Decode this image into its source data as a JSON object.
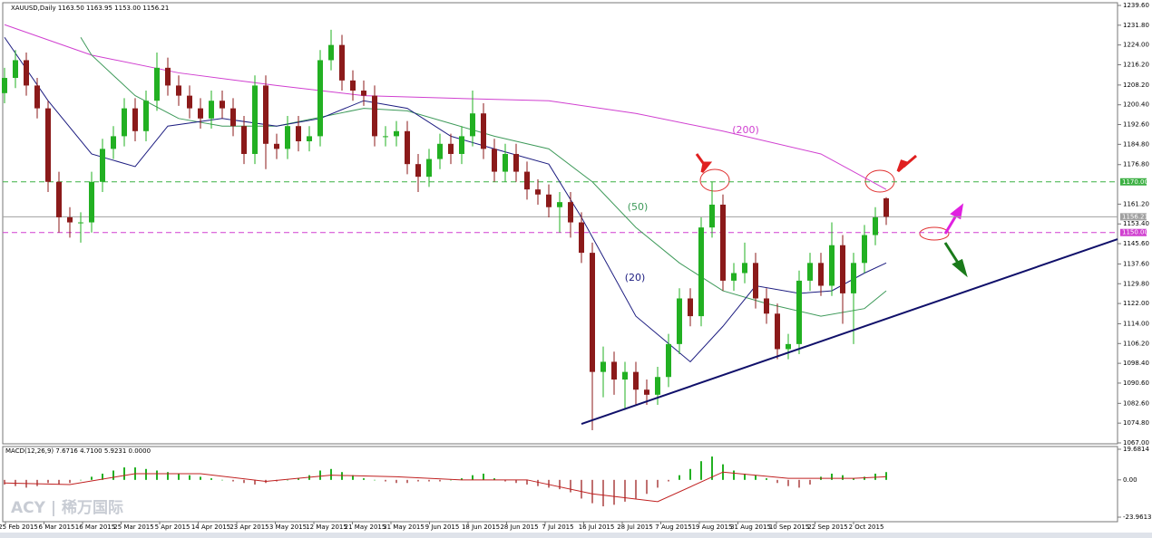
{
  "chart_data": {
    "type": "candlestick",
    "title": "XAUUSD,Daily 1163.50 1163.95 1153.00 1156.21",
    "ylim": [
      1067.0,
      1239.6
    ],
    "yticks": [
      {
        "value": 1239.6,
        "label": "1239.60"
      },
      {
        "value": 1231.8,
        "label": "1231.80"
      },
      {
        "value": 1224.0,
        "label": "1224.00"
      },
      {
        "value": 1216.2,
        "label": "1216.20"
      },
      {
        "value": 1208.2,
        "label": "1208.20"
      },
      {
        "value": 1200.4,
        "label": "1200.40"
      },
      {
        "value": 1192.6,
        "label": "1192.60"
      },
      {
        "value": 1184.8,
        "label": "1184.80"
      },
      {
        "value": 1176.8,
        "label": "1176.80"
      },
      {
        "value": 1161.2,
        "label": "1161.20"
      },
      {
        "value": 1153.4,
        "label": "1153.40"
      },
      {
        "value": 1145.6,
        "label": "1145.60"
      },
      {
        "value": 1137.6,
        "label": "1137.60"
      },
      {
        "value": 1129.8,
        "label": "1129.80"
      },
      {
        "value": 1122.0,
        "label": "1122.00"
      },
      {
        "value": 1114.0,
        "label": "1114.00"
      },
      {
        "value": 1106.2,
        "label": "1106.20"
      },
      {
        "value": 1098.4,
        "label": "1098.40"
      },
      {
        "value": 1090.6,
        "label": "1090.60"
      },
      {
        "value": 1082.6,
        "label": "1082.60"
      },
      {
        "value": 1074.8,
        "label": "1074.80"
      },
      {
        "value": 1067.0,
        "label": "1067.00"
      }
    ],
    "x_labels": [
      "25 Feb 2015",
      "6 Mar 2015",
      "16 Mar 2015",
      "25 Mar 2015",
      "5 Apr 2015",
      "14 Apr 2015",
      "23 Apr 2015",
      "3 May 2015",
      "12 May 2015",
      "21 May 2015",
      "31 May 2015",
      "9 Jun 2015",
      "18 Jun 2015",
      "28 Jun 2015",
      "7 Jul 2015",
      "16 Jul 2015",
      "28 Jul 2015",
      "7 Aug 2015",
      "19 Aug 2015",
      "31 Aug 2015",
      "10 Sep 2015",
      "22 Sep 2015",
      "2 Oct 2015"
    ],
    "up_color": "#22b022",
    "down_color": "#8b1a1a",
    "ohlc": [
      [
        1205,
        1215,
        1201,
        1211
      ],
      [
        1211,
        1222,
        1207,
        1218
      ],
      [
        1218,
        1221,
        1204,
        1208
      ],
      [
        1208,
        1211,
        1195,
        1199
      ],
      [
        1199,
        1202,
        1166,
        1170
      ],
      [
        1170,
        1174,
        1150,
        1156
      ],
      [
        1156,
        1160,
        1148,
        1154
      ],
      [
        1154,
        1158,
        1146,
        1154
      ],
      [
        1154,
        1174,
        1150,
        1170
      ],
      [
        1170,
        1187,
        1166,
        1183
      ],
      [
        1183,
        1192,
        1179,
        1188
      ],
      [
        1188,
        1203,
        1184,
        1199
      ],
      [
        1199,
        1203,
        1186,
        1190
      ],
      [
        1190,
        1206,
        1186,
        1202
      ],
      [
        1202,
        1221,
        1198,
        1215
      ],
      [
        1215,
        1219,
        1204,
        1208
      ],
      [
        1208,
        1212,
        1200,
        1204
      ],
      [
        1204,
        1208,
        1195,
        1199
      ],
      [
        1199,
        1203,
        1191,
        1195
      ],
      [
        1195,
        1206,
        1191,
        1202
      ],
      [
        1202,
        1206,
        1195,
        1199
      ],
      [
        1199,
        1203,
        1188,
        1192
      ],
      [
        1192,
        1196,
        1177,
        1181
      ],
      [
        1181,
        1212,
        1177,
        1208
      ],
      [
        1208,
        1212,
        1175,
        1185
      ],
      [
        1185,
        1189,
        1179,
        1183
      ],
      [
        1183,
        1196,
        1179,
        1192
      ],
      [
        1192,
        1196,
        1182,
        1186
      ],
      [
        1186,
        1192,
        1182,
        1188
      ],
      [
        1188,
        1222,
        1184,
        1218
      ],
      [
        1218,
        1230,
        1214,
        1224
      ],
      [
        1224,
        1228,
        1206,
        1210
      ],
      [
        1210,
        1214,
        1202,
        1206
      ],
      [
        1206,
        1210,
        1200,
        1204
      ],
      [
        1204,
        1208,
        1184,
        1188
      ],
      [
        1188,
        1192,
        1184,
        1188
      ],
      [
        1188,
        1194,
        1184,
        1190
      ],
      [
        1190,
        1194,
        1173,
        1177
      ],
      [
        1177,
        1181,
        1166,
        1172
      ],
      [
        1172,
        1183,
        1168,
        1179
      ],
      [
        1179,
        1189,
        1175,
        1185
      ],
      [
        1185,
        1189,
        1177,
        1181
      ],
      [
        1181,
        1192,
        1177,
        1188
      ],
      [
        1188,
        1206,
        1184,
        1197
      ],
      [
        1197,
        1201,
        1179,
        1183
      ],
      [
        1183,
        1187,
        1170,
        1174
      ],
      [
        1174,
        1185,
        1170,
        1181
      ],
      [
        1181,
        1185,
        1170,
        1174
      ],
      [
        1174,
        1178,
        1163,
        1167
      ],
      [
        1167,
        1171,
        1161,
        1165
      ],
      [
        1165,
        1169,
        1156,
        1160
      ],
      [
        1160,
        1166,
        1150,
        1162
      ],
      [
        1162,
        1166,
        1148,
        1154
      ],
      [
        1154,
        1158,
        1138,
        1142
      ],
      [
        1142,
        1146,
        1072,
        1095
      ],
      [
        1095,
        1105,
        1085,
        1099
      ],
      [
        1099,
        1103,
        1086,
        1092
      ],
      [
        1092,
        1099,
        1080,
        1095
      ],
      [
        1095,
        1099,
        1082,
        1088
      ],
      [
        1088,
        1092,
        1082,
        1086
      ],
      [
        1086,
        1097,
        1082,
        1093
      ],
      [
        1093,
        1110,
        1089,
        1106
      ],
      [
        1106,
        1128,
        1102,
        1124
      ],
      [
        1124,
        1128,
        1113,
        1117
      ],
      [
        1117,
        1156,
        1113,
        1152
      ],
      [
        1152,
        1170,
        1148,
        1161
      ],
      [
        1161,
        1165,
        1127,
        1131
      ],
      [
        1131,
        1138,
        1127,
        1134
      ],
      [
        1134,
        1146,
        1130,
        1138
      ],
      [
        1138,
        1142,
        1120,
        1124
      ],
      [
        1124,
        1128,
        1114,
        1118
      ],
      [
        1118,
        1122,
        1100,
        1104
      ],
      [
        1104,
        1110,
        1100,
        1106
      ],
      [
        1106,
        1135,
        1102,
        1131
      ],
      [
        1131,
        1142,
        1127,
        1138
      ],
      [
        1138,
        1142,
        1125,
        1129
      ],
      [
        1129,
        1154,
        1125,
        1145
      ],
      [
        1145,
        1149,
        1114,
        1126
      ],
      [
        1126,
        1142,
        1106,
        1138
      ],
      [
        1138,
        1153,
        1134,
        1149
      ],
      [
        1149,
        1160,
        1145,
        1156
      ],
      [
        1163.5,
        1163.95,
        1153,
        1156.21
      ]
    ],
    "moving_averages": [
      {
        "name": "(200)",
        "color": "#d03fd0",
        "x": [
          0,
          8,
          16,
          25,
          33,
          41,
          50,
          58,
          66,
          75,
          81
        ],
        "values": [
          1232,
          1220,
          1213,
          1208,
          1204,
          1203,
          1202,
          1197,
          1190,
          1181,
          1167
        ]
      },
      {
        "name": "(50)",
        "color": "#3e9a5a",
        "x": [
          7,
          8,
          12,
          16,
          20,
          25,
          33,
          37,
          41,
          45,
          50,
          54,
          58,
          62,
          66,
          70,
          75,
          79,
          81
        ],
        "values": [
          1227,
          1220,
          1204,
          1195,
          1192,
          1192,
          1199,
          1198,
          1193,
          1188,
          1183,
          1170,
          1152,
          1138,
          1127,
          1122,
          1117,
          1120,
          1127
        ]
      },
      {
        "name": "(20)",
        "color": "#1c1c80",
        "x": [
          0,
          4,
          8,
          12,
          15,
          20,
          25,
          29,
          33,
          37,
          41,
          45,
          50,
          53,
          58,
          63,
          66,
          69,
          73,
          76,
          79,
          81
        ],
        "values": [
          1227,
          1202,
          1181,
          1176,
          1192,
          1195,
          1192,
          1195,
          1202,
          1199,
          1188,
          1183,
          1177,
          1156,
          1117,
          1099,
          1113,
          1129,
          1126,
          1127,
          1134,
          1138
        ]
      }
    ],
    "levels": [
      {
        "value": 1170.0,
        "label": "1170.00",
        "color": "#3cb043"
      },
      {
        "value": 1156.21,
        "label": "1156.21",
        "color": "#a0a0a0"
      },
      {
        "value": 1150.0,
        "label": "1150.00",
        "color": "#d03fd0"
      }
    ],
    "trendline": {
      "color": "#10106a",
      "x": [
        53,
        102.25
      ],
      "values": [
        1074.5,
        1147.4
      ]
    },
    "macd": {
      "label": "MACD(12,26,9) 7.6716 4.7100 5.9231 0.0000",
      "ylim": [
        -23.9613,
        19.6814
      ],
      "yticks": [
        {
          "value": 19.6814,
          "label": "19.6814"
        },
        {
          "value": 0,
          "label": "0.00"
        },
        {
          "value": -23.9613,
          "label": "-23.9613"
        }
      ],
      "histogram": [
        -3,
        -4,
        -5,
        -4,
        -2,
        -3,
        -2,
        0,
        2,
        4,
        6,
        8,
        8,
        7,
        6,
        5,
        4,
        3,
        2,
        1,
        0,
        -1,
        -2,
        -3,
        -2,
        -1,
        0,
        1,
        3,
        6,
        7,
        5,
        3,
        1,
        0,
        -1,
        -2,
        -2,
        -1,
        -1,
        -1,
        0,
        1,
        3,
        4,
        1,
        -1,
        -2,
        -3,
        -4,
        -5,
        -6,
        -8,
        -12,
        -15,
        -17,
        -16,
        -14,
        -12,
        -9,
        -5,
        -1,
        3,
        7,
        12,
        15,
        10,
        6,
        4,
        3,
        1,
        -2,
        -4,
        -5,
        -3,
        2,
        4,
        3,
        1,
        2,
        4,
        5
      ],
      "signal": {
        "color": "#c02020",
        "x": [
          0,
          6,
          12,
          18,
          24,
          30,
          36,
          42,
          48,
          54,
          60,
          66,
          72,
          78,
          81
        ],
        "values": [
          -2,
          -3,
          4,
          4,
          -1,
          3,
          2,
          0,
          0,
          -9,
          -14,
          5,
          1,
          1,
          2
        ]
      }
    },
    "watermark": "ACY | 稀万国际"
  }
}
